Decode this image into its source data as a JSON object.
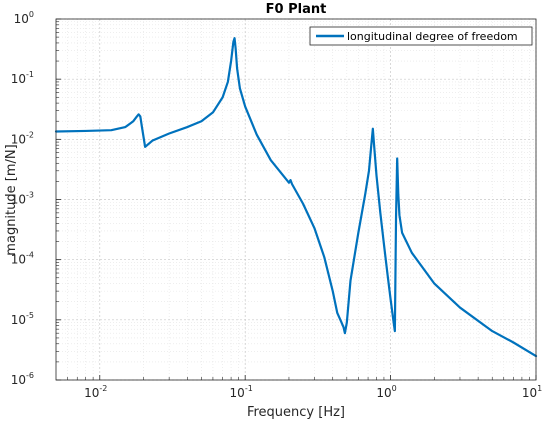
{
  "chart_data": {
    "type": "line",
    "title": "F0 Plant",
    "xlabel": "Frequency [Hz]",
    "ylabel": "magnitude [m/N]",
    "xscale": "log",
    "yscale": "log",
    "xlim": [
      0.005,
      10
    ],
    "ylim": [
      1e-06,
      1
    ],
    "x_ticks": [
      {
        "value": 0.01,
        "base": "10",
        "exp": "-2"
      },
      {
        "value": 0.1,
        "base": "10",
        "exp": "-1"
      },
      {
        "value": 1,
        "base": "10",
        "exp": "0"
      },
      {
        "value": 10,
        "base": "10",
        "exp": "1"
      }
    ],
    "y_ticks": [
      {
        "value": 1e-06,
        "base": "10",
        "exp": "-6"
      },
      {
        "value": 1e-05,
        "base": "10",
        "exp": "-5"
      },
      {
        "value": 0.0001,
        "base": "10",
        "exp": "-4"
      },
      {
        "value": 0.001,
        "base": "10",
        "exp": "-3"
      },
      {
        "value": 0.01,
        "base": "10",
        "exp": "-2"
      },
      {
        "value": 0.1,
        "base": "10",
        "exp": "-1"
      },
      {
        "value": 1,
        "base": "10",
        "exp": "0"
      }
    ],
    "grid": true,
    "minor_grid": true,
    "legend_position": "top-right",
    "series": [
      {
        "name": "longitudinal degree of freedom",
        "color": "#0072BD",
        "x": [
          0.005,
          0.008,
          0.012,
          0.015,
          0.017,
          0.018,
          0.0185,
          0.019,
          0.0195,
          0.0205,
          0.023,
          0.03,
          0.04,
          0.05,
          0.06,
          0.07,
          0.076,
          0.08,
          0.083,
          0.0845,
          0.086,
          0.088,
          0.092,
          0.1,
          0.12,
          0.15,
          0.2,
          0.205,
          0.21,
          0.25,
          0.3,
          0.35,
          0.4,
          0.43,
          0.46,
          0.475,
          0.485,
          0.5,
          0.53,
          0.6,
          0.67,
          0.71,
          0.74,
          0.755,
          0.77,
          0.8,
          0.85,
          0.9,
          0.95,
          1.0,
          1.05,
          1.07,
          1.09,
          1.11,
          1.13,
          1.15,
          1.2,
          1.4,
          2,
          3,
          5,
          7,
          10
        ],
        "y": [
          0.0135,
          0.0138,
          0.0142,
          0.016,
          0.02,
          0.024,
          0.026,
          0.024,
          0.016,
          0.0075,
          0.0095,
          0.0125,
          0.016,
          0.02,
          0.028,
          0.05,
          0.09,
          0.2,
          0.42,
          0.48,
          0.32,
          0.15,
          0.07,
          0.035,
          0.012,
          0.0045,
          0.0019,
          0.0021,
          0.0018,
          0.00085,
          0.00033,
          0.00011,
          3e-05,
          1.3e-05,
          9e-06,
          7.5e-06,
          6e-06,
          9e-06,
          4.5e-05,
          0.00028,
          0.00125,
          0.003,
          0.009,
          0.015,
          0.008,
          0.0025,
          0.0006,
          0.00018,
          6e-05,
          2.2e-05,
          9e-06,
          6.5e-06,
          0.0005,
          0.0048,
          0.0012,
          0.00055,
          0.00028,
          0.00013,
          4e-05,
          1.6e-05,
          6.5e-06,
          4.2e-06,
          2.5e-06
        ]
      }
    ]
  }
}
